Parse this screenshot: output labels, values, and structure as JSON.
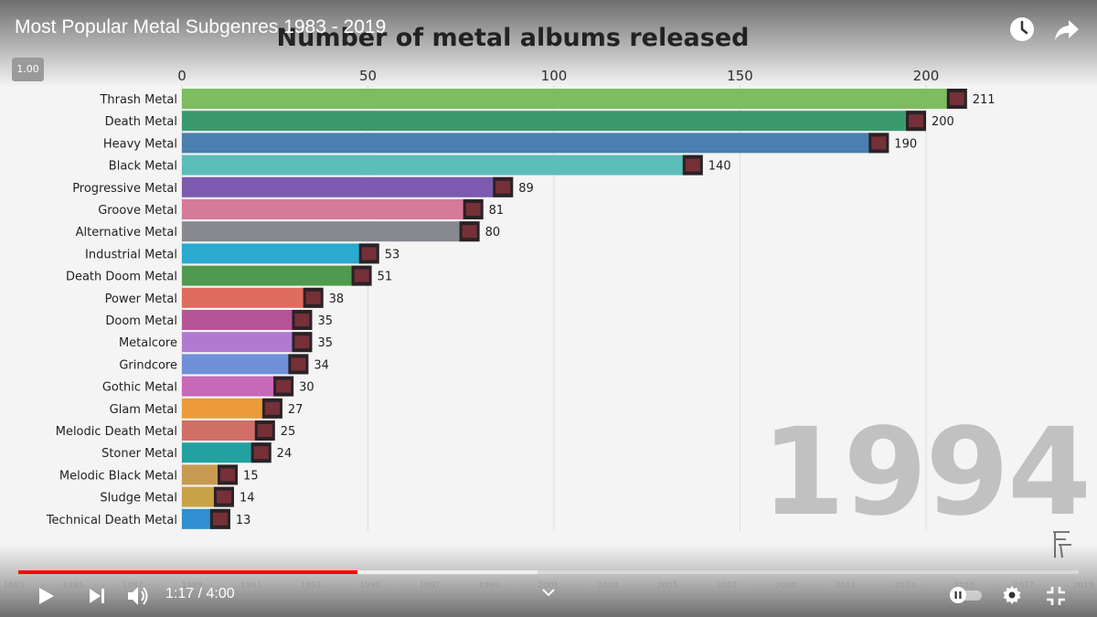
{
  "header": {
    "video_title": "Most Popular Metal Subgenres 1983 - 2019",
    "playback_speed": "1.00"
  },
  "chart_data": {
    "type": "bar",
    "orientation": "horizontal",
    "title": "Number of metal albums released",
    "xlim": [
      0,
      215
    ],
    "x_ticks": [
      0,
      50,
      100,
      150,
      200
    ],
    "grid": true,
    "year_label": "1994",
    "categories": [
      "Thrash Metal",
      "Death Metal",
      "Heavy Metal",
      "Black Metal",
      "Progressive Metal",
      "Groove Metal",
      "Alternative Metal",
      "Industrial Metal",
      "Death Doom Metal",
      "Power Metal",
      "Doom Metal",
      "Metalcore",
      "Grindcore",
      "Gothic Metal",
      "Glam Metal",
      "Melodic Death Metal",
      "Stoner Metal",
      "Melodic Black Metal",
      "Sludge Metal",
      "Technical Death Metal"
    ],
    "values": [
      211,
      200,
      190,
      140,
      89,
      81,
      80,
      53,
      51,
      38,
      35,
      35,
      34,
      30,
      27,
      25,
      24,
      15,
      14,
      13
    ],
    "colors": [
      "#7dbd5f",
      "#3a9a6e",
      "#4a7fb0",
      "#5bbdb7",
      "#7d5ab0",
      "#d67a9a",
      "#888890",
      "#2ba9cf",
      "#4f9a4f",
      "#e06b5f",
      "#b65596",
      "#b07ad0",
      "#6f8fd8",
      "#c868b8",
      "#ec9b3a",
      "#d06e68",
      "#23a0a0",
      "#c79a52",
      "#c8a246",
      "#2f8fcf"
    ]
  },
  "player": {
    "current_time": "1:17",
    "duration": "4:00",
    "time_display": "1:17 / 4:00",
    "progress_played": 0.32,
    "progress_loaded": 0.49,
    "timeline_years": [
      "1983",
      "1985",
      "1987",
      "1989",
      "1991",
      "1993",
      "1995",
      "1997",
      "1999",
      "2001",
      "2003",
      "2005",
      "2007",
      "2009",
      "2011",
      "2013",
      "2015",
      "2017",
      "2019"
    ]
  },
  "icons": {
    "watch_later": "clock-icon",
    "share": "share-icon",
    "play": "play-icon",
    "next": "next-icon",
    "volume": "volume-icon",
    "chevron": "chevron-down-icon",
    "autoplay": "autoplay-toggle",
    "settings": "gear-icon",
    "exit_fullscreen": "exit-fullscreen-icon",
    "logo": "channel-logo"
  }
}
